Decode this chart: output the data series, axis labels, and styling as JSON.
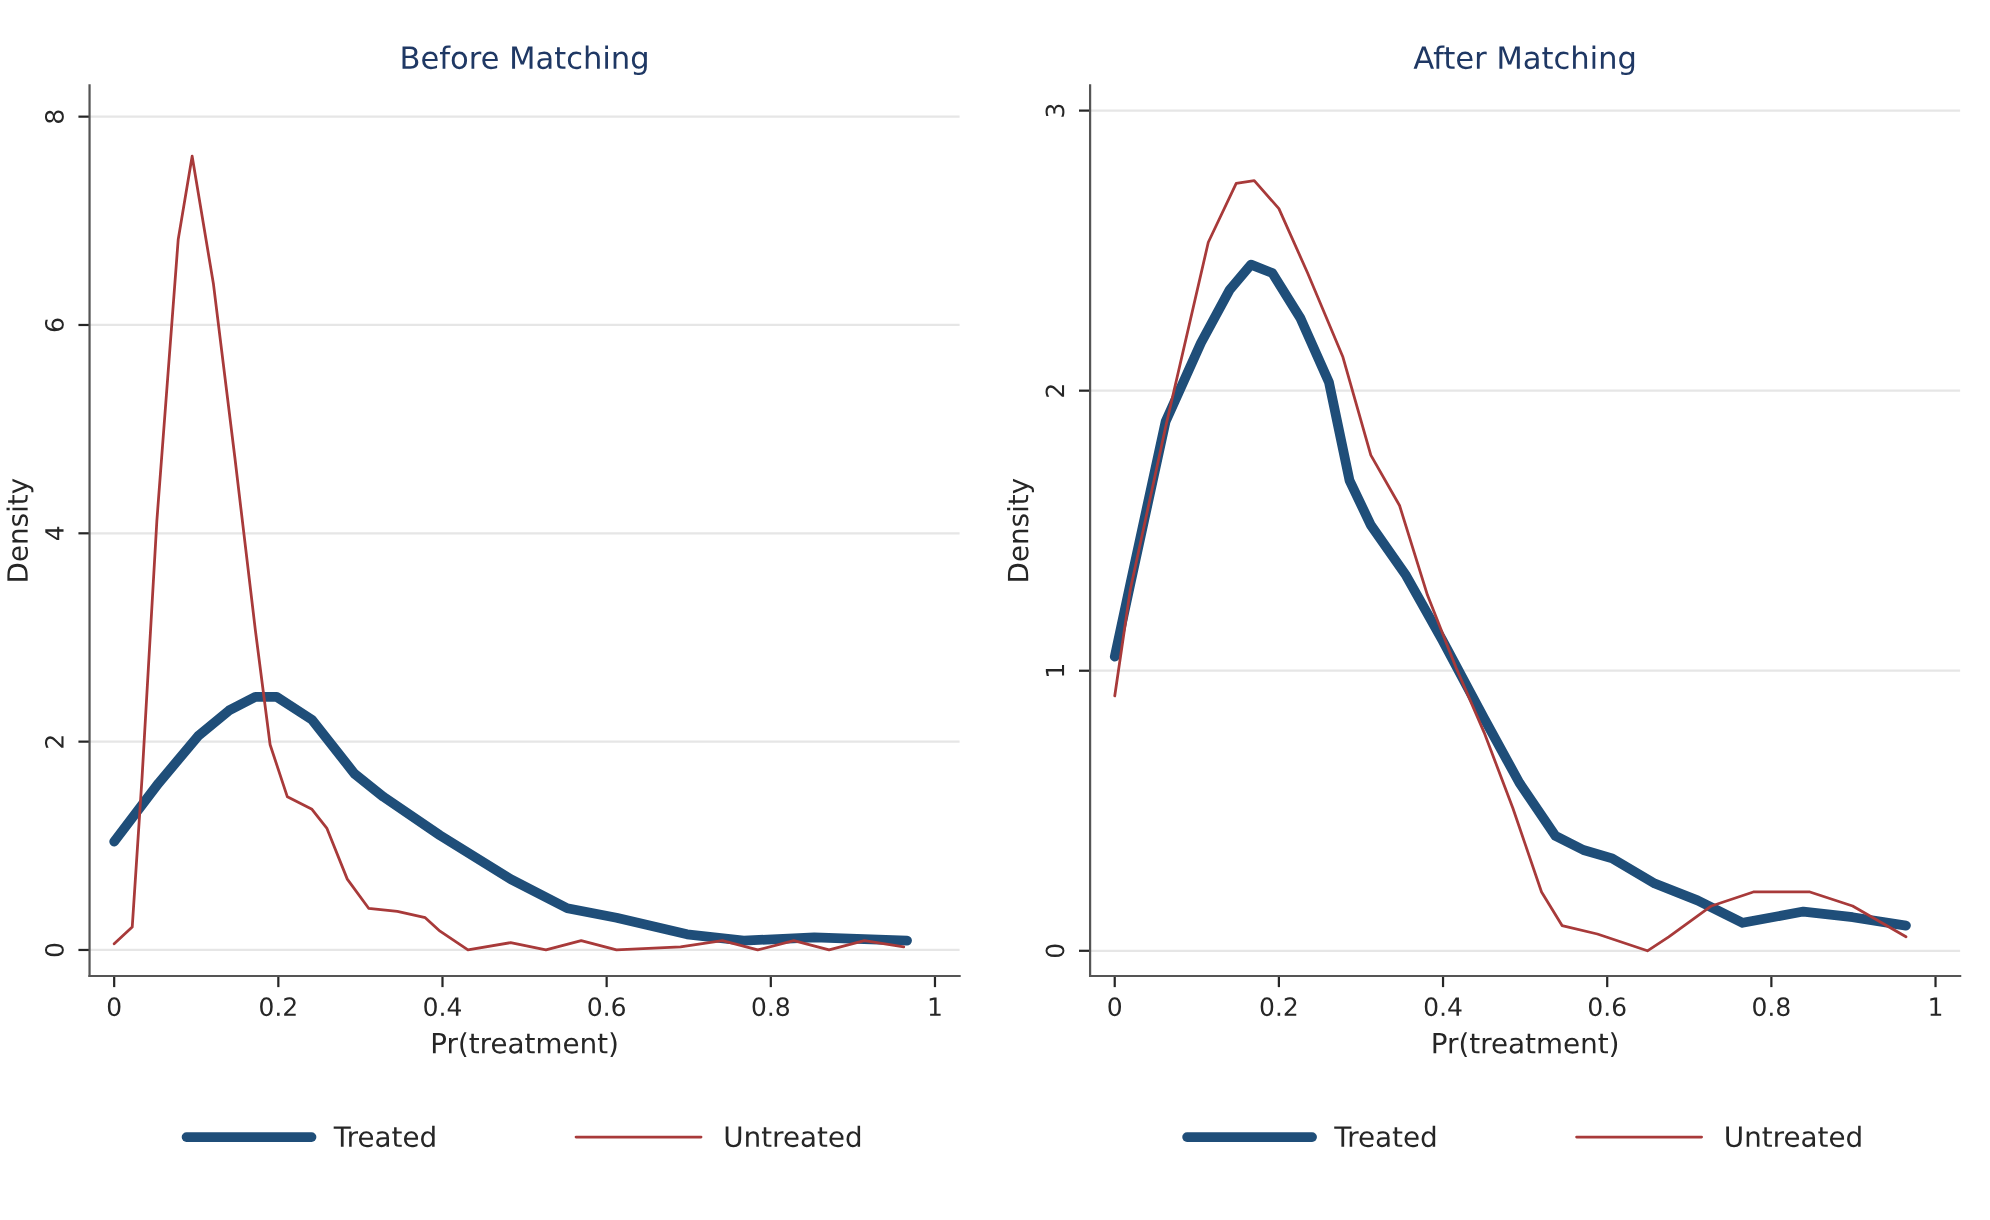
{
  "chart_data": [
    {
      "type": "line",
      "title": "Before Matching",
      "xlabel": "Pr(treatment)",
      "ylabel": "Density",
      "xlim": [
        -0.03,
        1.03
      ],
      "ylim": [
        -0.25,
        8.3
      ],
      "xticks": [
        0,
        0.2,
        0.4,
        0.6,
        0.8,
        1
      ],
      "yticks": [
        0,
        2,
        4,
        6,
        8
      ],
      "grid": "y",
      "legend": "bottom",
      "marker": "none",
      "line_style": "solid",
      "series": [
        {
          "name": "Treated",
          "color": "#1f4e79",
          "x": [
            0,
            0.054,
            0.103,
            0.14,
            0.172,
            0.198,
            0.241,
            0.293,
            0.328,
            0.397,
            0.483,
            0.552,
            0.612,
            0.698,
            0.767,
            0.853,
            0.966
          ],
          "values": [
            1.04,
            1.6,
            2.06,
            2.3,
            2.43,
            2.43,
            2.21,
            1.69,
            1.47,
            1.1,
            0.68,
            0.4,
            0.31,
            0.15,
            0.09,
            0.12,
            0.09
          ]
        },
        {
          "name": "Untreated",
          "color": "#a83a3a",
          "x": [
            0,
            0.022,
            0.034,
            0.052,
            0.078,
            0.095,
            0.121,
            0.147,
            0.172,
            0.19,
            0.211,
            0.241,
            0.259,
            0.284,
            0.31,
            0.345,
            0.379,
            0.397,
            0.431,
            0.483,
            0.526,
            0.569,
            0.612,
            0.69,
            0.741,
            0.784,
            0.828,
            0.871,
            0.914,
            0.962
          ],
          "values": [
            0.06,
            0.22,
            1.66,
            4.12,
            6.82,
            7.62,
            6.39,
            4.73,
            3.07,
            1.97,
            1.47,
            1.35,
            1.17,
            0.68,
            0.4,
            0.37,
            0.31,
            0.18,
            0,
            0.07,
            0,
            0.09,
            0,
            0.03,
            0.09,
            0,
            0.09,
            0,
            0.09,
            0.03
          ]
        }
      ]
    },
    {
      "type": "line",
      "title": "After Matching",
      "xlabel": "Pr(treatment)",
      "ylabel": "Density",
      "xlim": [
        -0.03,
        1.03
      ],
      "ylim": [
        -0.09,
        3.09
      ],
      "xticks": [
        0,
        0.2,
        0.4,
        0.6,
        0.8,
        1
      ],
      "yticks": [
        0,
        1,
        2,
        3
      ],
      "grid": "y",
      "legend": "bottom",
      "marker": "none",
      "line_style": "solid",
      "series": [
        {
          "name": "Treated",
          "color": "#1f4e79",
          "x": [
            0,
            0.019,
            0.062,
            0.105,
            0.14,
            0.166,
            0.192,
            0.226,
            0.261,
            0.286,
            0.312,
            0.355,
            0.399,
            0.45,
            0.493,
            0.537,
            0.571,
            0.606,
            0.658,
            0.71,
            0.765,
            0.839,
            0.899,
            0.964
          ],
          "values": [
            1.05,
            1.31,
            1.89,
            2.17,
            2.36,
            2.45,
            2.42,
            2.26,
            2.03,
            1.68,
            1.52,
            1.34,
            1.11,
            0.83,
            0.6,
            0.41,
            0.36,
            0.33,
            0.24,
            0.18,
            0.1,
            0.14,
            0.12,
            0.09
          ]
        },
        {
          "name": "Untreated",
          "color": "#a83a3a",
          "x": [
            0,
            0.019,
            0.062,
            0.114,
            0.148,
            0.17,
            0.2,
            0.235,
            0.278,
            0.312,
            0.347,
            0.381,
            0.416,
            0.45,
            0.485,
            0.52,
            0.545,
            0.588,
            0.649,
            0.675,
            0.727,
            0.778,
            0.847,
            0.899,
            0.964
          ],
          "values": [
            0.91,
            1.29,
            1.87,
            2.53,
            2.74,
            2.75,
            2.65,
            2.42,
            2.12,
            1.77,
            1.59,
            1.27,
            1.01,
            0.78,
            0.51,
            0.21,
            0.09,
            0.06,
            0,
            0.05,
            0.16,
            0.21,
            0.21,
            0.16,
            0.05
          ]
        }
      ]
    }
  ]
}
